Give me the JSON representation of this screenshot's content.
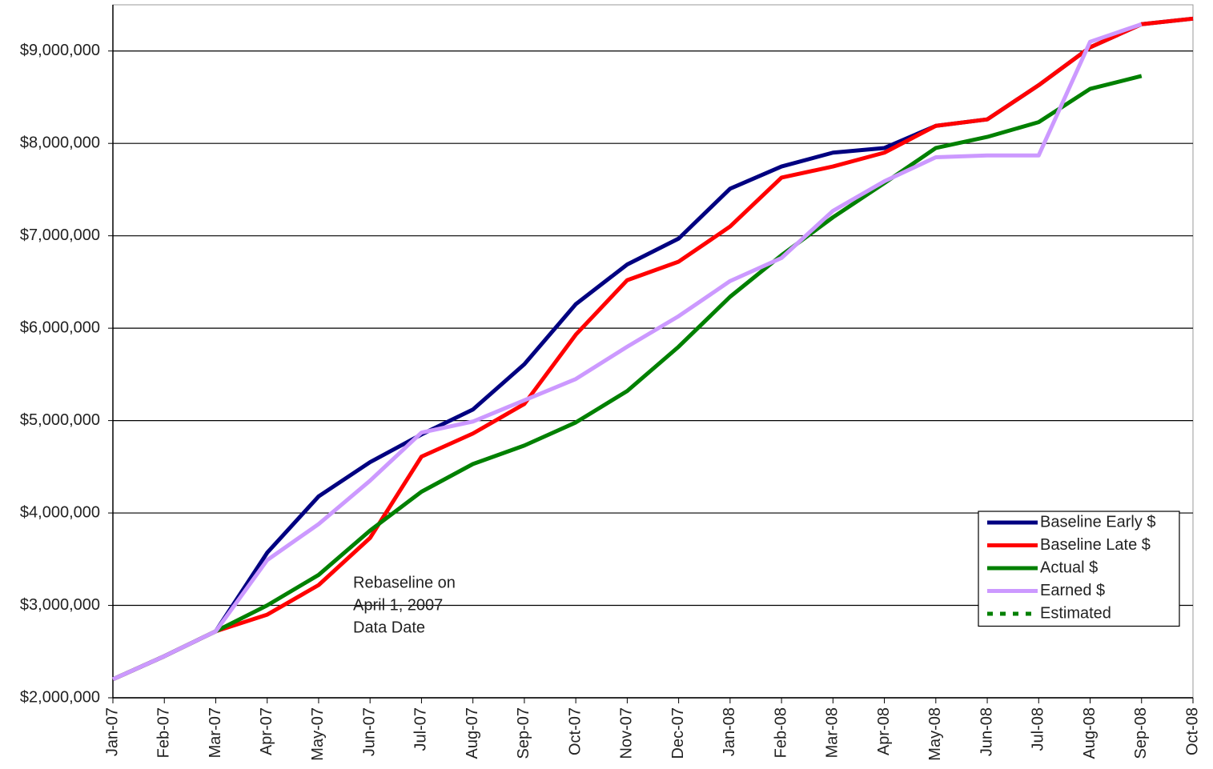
{
  "chart_data": {
    "type": "line",
    "categories": [
      "Jan-07",
      "Feb-07",
      "Mar-07",
      "Apr-07",
      "May-07",
      "Jun-07",
      "Jul-07",
      "Aug-07",
      "Sep-07",
      "Oct-07",
      "Nov-07",
      "Dec-07",
      "Jan-08",
      "Feb-08",
      "Mar-08",
      "Apr-08",
      "May-08",
      "Jun-08",
      "Jul-08",
      "Aug-08",
      "Sep-08",
      "Oct-08"
    ],
    "series": [
      {
        "name": "Baseline Early $",
        "color": "#000080",
        "values": [
          2200000,
          2450000,
          2720000,
          3570000,
          4180000,
          4550000,
          4850000,
          5120000,
          5610000,
          6260000,
          6690000,
          6970000,
          7510000,
          7750000,
          7900000,
          7950000,
          8190000,
          8260000,
          8630000,
          9040000,
          9290000,
          9350000
        ]
      },
      {
        "name": "Baseline Late $",
        "color": "#ff0000",
        "values": [
          2200000,
          2450000,
          2720000,
          2900000,
          3220000,
          3730000,
          4610000,
          4860000,
          5180000,
          5930000,
          6520000,
          6720000,
          7100000,
          7630000,
          7750000,
          7900000,
          8190000,
          8260000,
          8630000,
          9040000,
          9290000,
          9350000
        ]
      },
      {
        "name": "Actual $",
        "color": "#008000",
        "values": [
          2200000,
          2450000,
          2720000,
          3000000,
          3330000,
          3810000,
          4230000,
          4530000,
          4730000,
          4980000,
          5320000,
          5800000,
          6340000,
          6790000,
          7200000,
          7570000,
          7950000,
          8070000,
          8230000,
          8590000,
          8730000,
          null
        ]
      },
      {
        "name": "Earned $",
        "color": "#cc99ff",
        "values": [
          2200000,
          2450000,
          2720000,
          3490000,
          3880000,
          4350000,
          4870000,
          4990000,
          5220000,
          5450000,
          5800000,
          6130000,
          6510000,
          6760000,
          7270000,
          7590000,
          7850000,
          7870000,
          7870000,
          9100000,
          9290000,
          null
        ]
      },
      {
        "name": "Estimated",
        "color": "#008000",
        "dashed": true,
        "values": [
          null,
          null,
          null,
          null,
          null,
          null,
          null,
          null,
          null,
          null,
          null,
          null,
          null,
          null,
          null,
          null,
          null,
          null,
          null,
          null,
          null,
          null
        ]
      }
    ],
    "annotation": [
      "Rebaseline on",
      "April 1, 2007",
      "Data Date"
    ],
    "ylim": [
      2000000,
      9500000
    ],
    "yticks": [
      {
        "value": 2000000,
        "label": "$2,000,000"
      },
      {
        "value": 3000000,
        "label": "$3,000,000"
      },
      {
        "value": 4000000,
        "label": "$4,000,000"
      },
      {
        "value": 5000000,
        "label": "$5,000,000"
      },
      {
        "value": 6000000,
        "label": "$6,000,000"
      },
      {
        "value": 7000000,
        "label": "$7,000,000"
      },
      {
        "value": 8000000,
        "label": "$8,000,000"
      },
      {
        "value": 9000000,
        "label": "$9,000,000"
      }
    ],
    "grid": true,
    "legend": "lower right"
  }
}
